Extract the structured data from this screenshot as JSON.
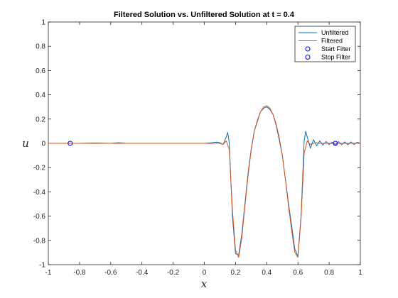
{
  "chart_data": {
    "type": "line",
    "title": "Filtered Solution vs. Unfiltered Solution at t = 0.4",
    "xlabel": "x",
    "ylabel": "u",
    "xlim": [
      -1,
      1
    ],
    "ylim": [
      -1,
      1
    ],
    "xticks": [
      -1,
      -0.8,
      -0.6,
      -0.4,
      -0.2,
      0,
      0.2,
      0.4,
      0.6,
      0.8,
      1
    ],
    "xtick_labels": [
      "-1",
      "-0.8",
      "-0.6",
      "-0.4",
      "-0.2",
      "0",
      "0.2",
      "0.4",
      "0.6",
      "0.8",
      "1"
    ],
    "yticks": [
      -1,
      -0.8,
      -0.6,
      -0.4,
      -0.2,
      0,
      0.2,
      0.4,
      0.6,
      0.8,
      1
    ],
    "ytick_labels": [
      "-1",
      "-0.8",
      "-0.6",
      "-0.4",
      "-0.2",
      "0",
      "0.2",
      "0.4",
      "0.6",
      "0.8",
      "1"
    ],
    "grid": false,
    "legend_position": "top-right",
    "series": [
      {
        "name": "Unfiltered",
        "style": "line",
        "color": "#0072BD",
        "x": [
          -1,
          -0.9,
          -0.8,
          -0.7,
          -0.6,
          -0.55,
          -0.5,
          -0.4,
          -0.3,
          -0.2,
          -0.1,
          0,
          0.05,
          0.08,
          0.1,
          0.12,
          0.14,
          0.15,
          0.16,
          0.18,
          0.2,
          0.22,
          0.24,
          0.26,
          0.28,
          0.3,
          0.32,
          0.34,
          0.36,
          0.38,
          0.4,
          0.42,
          0.44,
          0.46,
          0.48,
          0.5,
          0.52,
          0.54,
          0.56,
          0.58,
          0.6,
          0.62,
          0.64,
          0.65,
          0.66,
          0.68,
          0.7,
          0.72,
          0.74,
          0.76,
          0.78,
          0.8,
          0.82,
          0.84,
          0.86,
          0.88,
          0.9,
          0.92,
          0.94,
          0.96,
          0.98,
          1
        ],
        "y": [
          0,
          0,
          0,
          0.003,
          0,
          0.005,
          0,
          0,
          0,
          0,
          0,
          0,
          0.005,
          0.01,
          0.005,
          -0.01,
          0.05,
          0.09,
          0,
          -0.6,
          -0.91,
          -0.92,
          -0.75,
          -0.5,
          -0.25,
          -0.05,
          0.1,
          0.18,
          0.26,
          0.29,
          0.3,
          0.28,
          0.24,
          0.15,
          0.03,
          -0.1,
          -0.3,
          -0.5,
          -0.68,
          -0.87,
          -0.93,
          -0.6,
          0.02,
          0.1,
          0.05,
          -0.04,
          0.03,
          -0.02,
          0.02,
          -0.015,
          0.015,
          -0.01,
          0.01,
          -0.015,
          0.015,
          -0.012,
          0.012,
          -0.012,
          0.012,
          -0.01,
          0.01,
          0
        ]
      },
      {
        "name": "Filtered",
        "style": "line",
        "color": "#D95319",
        "x": [
          -1,
          -0.8,
          -0.6,
          -0.4,
          -0.2,
          0,
          0.05,
          0.08,
          0.1,
          0.12,
          0.14,
          0.16,
          0.18,
          0.2,
          0.22,
          0.24,
          0.26,
          0.28,
          0.3,
          0.32,
          0.34,
          0.36,
          0.38,
          0.4,
          0.42,
          0.44,
          0.46,
          0.48,
          0.5,
          0.52,
          0.54,
          0.56,
          0.58,
          0.6,
          0.62,
          0.64,
          0.66,
          0.68,
          0.7,
          0.72,
          0.74,
          0.76,
          0.78,
          0.8,
          0.85,
          0.9,
          0.95,
          1
        ],
        "y": [
          0,
          0,
          0,
          0,
          0,
          0,
          0,
          0.002,
          0,
          -0.01,
          0.02,
          -0.05,
          -0.55,
          -0.88,
          -0.94,
          -0.78,
          -0.52,
          -0.27,
          -0.06,
          0.1,
          0.19,
          0.26,
          0.3,
          0.31,
          0.29,
          0.24,
          0.16,
          0.05,
          -0.1,
          -0.3,
          -0.52,
          -0.72,
          -0.9,
          -0.94,
          -0.62,
          -0.08,
          0.02,
          -0.01,
          0,
          0.005,
          0,
          0,
          0,
          0,
          0,
          0,
          0,
          0
        ]
      },
      {
        "name": "Start Filter",
        "style": "marker",
        "color": "#0000FF",
        "x": [
          -0.86
        ],
        "y": [
          0
        ]
      },
      {
        "name": "Stop Filter",
        "style": "marker",
        "color": "#0000FF",
        "x": [
          0.84
        ],
        "y": [
          0
        ]
      }
    ]
  }
}
